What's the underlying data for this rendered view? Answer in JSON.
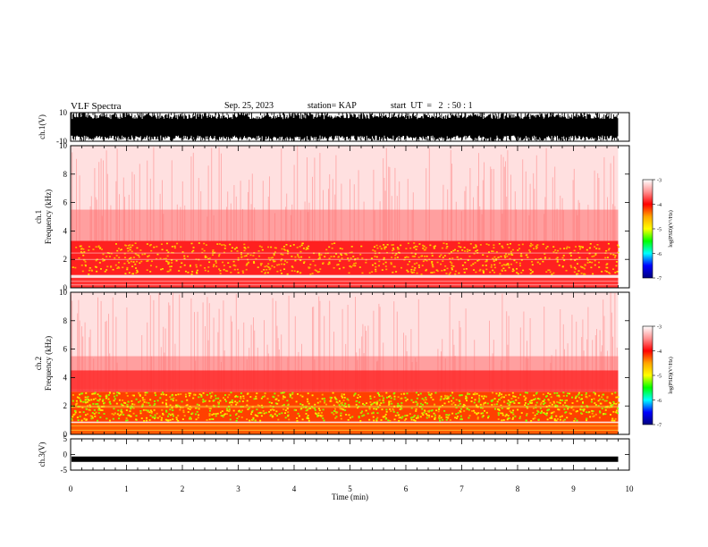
{
  "header": {
    "title": "VLF Spectra",
    "date": "Sep. 25, 2023",
    "station": "station= KAP",
    "start": "start  UT  =   2  : 50 : 1"
  },
  "colorbar": {
    "label": "log(PSD)(V²/Hz)",
    "ticks": [
      "-3",
      "-4",
      "-5",
      "-6",
      "-7"
    ],
    "colors": [
      "#ffffff",
      "#ff9090",
      "#ff0000",
      "#ffa500",
      "#ffff00",
      "#00ff00",
      "#00ffff",
      "#0000ff",
      "#000080"
    ]
  },
  "chart_data": [
    {
      "type": "line",
      "name": "waveform-ch1",
      "ylabel": "ch.1(V)",
      "ylim": [
        -10,
        10
      ],
      "yticks": [
        "10",
        "-10"
      ],
      "xlim": [
        0,
        10
      ],
      "waveform": "dense oscillation, amplitude saturating near ±10 V until ~9.8 min"
    },
    {
      "type": "heatmap",
      "name": "spectrogram-ch1",
      "ylabel": "ch.1 Frequency (kHz)",
      "ylim": [
        0,
        10
      ],
      "yticks": [
        "0",
        "2",
        "4",
        "6",
        "8",
        "10"
      ],
      "xlim": [
        0,
        10
      ],
      "data_end_min": 9.8,
      "bands": [
        {
          "f_low": 0.0,
          "f_high": 0.7,
          "level": "red (~-4)"
        },
        {
          "f_low": 1.0,
          "f_high": 3.3,
          "level": "red/orange/yellow (~-4 to -4.5)"
        },
        {
          "f_low": 3.3,
          "f_high": 5.0,
          "level": "red (~-4)"
        },
        {
          "f_low": 5.0,
          "f_high": 10.0,
          "level": "light red/white (~-3 to -3.5)"
        }
      ]
    },
    {
      "type": "heatmap",
      "name": "spectrogram-ch2",
      "ylabel": "ch.2 Frequency (kHz)",
      "ylim": [
        0,
        10
      ],
      "yticks": [
        "0",
        "2",
        "4",
        "6",
        "8",
        "10"
      ],
      "xlim": [
        0,
        10
      ],
      "data_end_min": 9.8,
      "bands": [
        {
          "f_low": 0.0,
          "f_high": 0.8,
          "level": "red/yellow (~-4.5)"
        },
        {
          "f_low": 1.0,
          "f_high": 3.0,
          "level": "yellow/green (~-4.5 to -5)"
        },
        {
          "f_low": 3.0,
          "f_high": 4.5,
          "level": "red (~-4)"
        },
        {
          "f_low": 4.5,
          "f_high": 10.0,
          "level": "light red/white (~-3 to -3.5)"
        }
      ]
    },
    {
      "type": "line",
      "name": "waveform-ch3",
      "ylabel": "ch.3(V)",
      "ylim": [
        -5,
        5
      ],
      "yticks": [
        "5",
        "0",
        "-5"
      ],
      "xlim": [
        0,
        10
      ],
      "waveform": "narrow band around -1.5 V until ~9.8 min"
    }
  ],
  "xaxis": {
    "label": "Time  (min)",
    "ticks": [
      "0",
      "1",
      "2",
      "3",
      "4",
      "5",
      "6",
      "7",
      "8",
      "9",
      "10"
    ],
    "range": [
      0,
      10
    ]
  }
}
